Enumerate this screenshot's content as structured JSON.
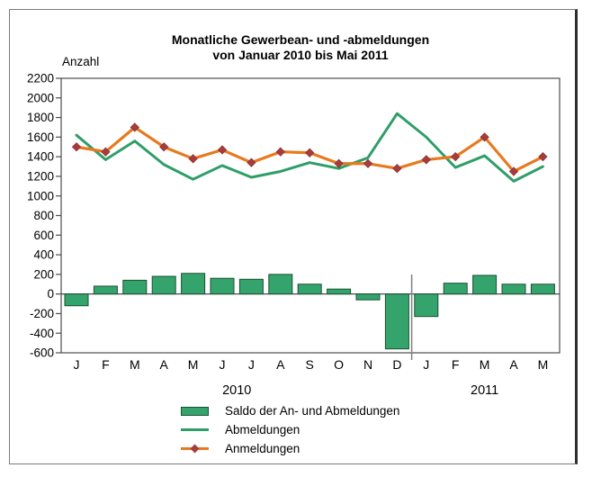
{
  "title": {
    "line1": "Monatliche Gewerbean- und -abmeldungen",
    "line2": "von Januar 2010 bis Mai 2011"
  },
  "y_axis_label": "Anzahl",
  "legend": [
    {
      "label": "Saldo der An- und Abmeldungen",
      "swatch": "bar-green"
    },
    {
      "label": "Abmeldungen",
      "swatch": "line-green"
    },
    {
      "label": "Anmeldungen",
      "swatch": "line-orange-diamond"
    }
  ],
  "colors": {
    "green": "#2e9e68",
    "bar_fill": "#35a36c",
    "bar_border": "#1b5134",
    "orange": "#e8791f",
    "marker": "#a83c3c",
    "axis": "#4d4d4d",
    "divider": "#808080"
  },
  "chart_data": {
    "type": "bar+line",
    "title": "Monatliche Gewerbean- und -abmeldungen von Januar 2010 bis Mai 2011",
    "ylabel": "Anzahl",
    "ylim": [
      -600,
      2200
    ],
    "ytick_step": 200,
    "grid": false,
    "legend_position": "bottom",
    "categories": [
      "J",
      "F",
      "M",
      "A",
      "M",
      "J",
      "J",
      "A",
      "S",
      "O",
      "N",
      "D",
      "J",
      "F",
      "M",
      "A",
      "M"
    ],
    "year_groups": [
      {
        "label": "2010",
        "from": 0,
        "to": 11
      },
      {
        "label": "2011",
        "from": 12,
        "to": 16
      }
    ],
    "series": [
      {
        "name": "Saldo der An- und Abmeldungen",
        "type": "bar",
        "values": [
          -120,
          80,
          140,
          180,
          210,
          160,
          150,
          200,
          100,
          50,
          -60,
          -560,
          -230,
          110,
          190,
          100,
          100
        ]
      },
      {
        "name": "Abmeldungen",
        "type": "line",
        "values": [
          1620,
          1370,
          1560,
          1320,
          1170,
          1310,
          1190,
          1250,
          1340,
          1280,
          1390,
          1840,
          1600,
          1290,
          1410,
          1150,
          1300
        ]
      },
      {
        "name": "Anmeldungen",
        "type": "line-marker",
        "values": [
          1500,
          1450,
          1700,
          1500,
          1380,
          1470,
          1340,
          1450,
          1440,
          1330,
          1330,
          1280,
          1370,
          1400,
          1600,
          1250,
          1400
        ]
      }
    ]
  }
}
